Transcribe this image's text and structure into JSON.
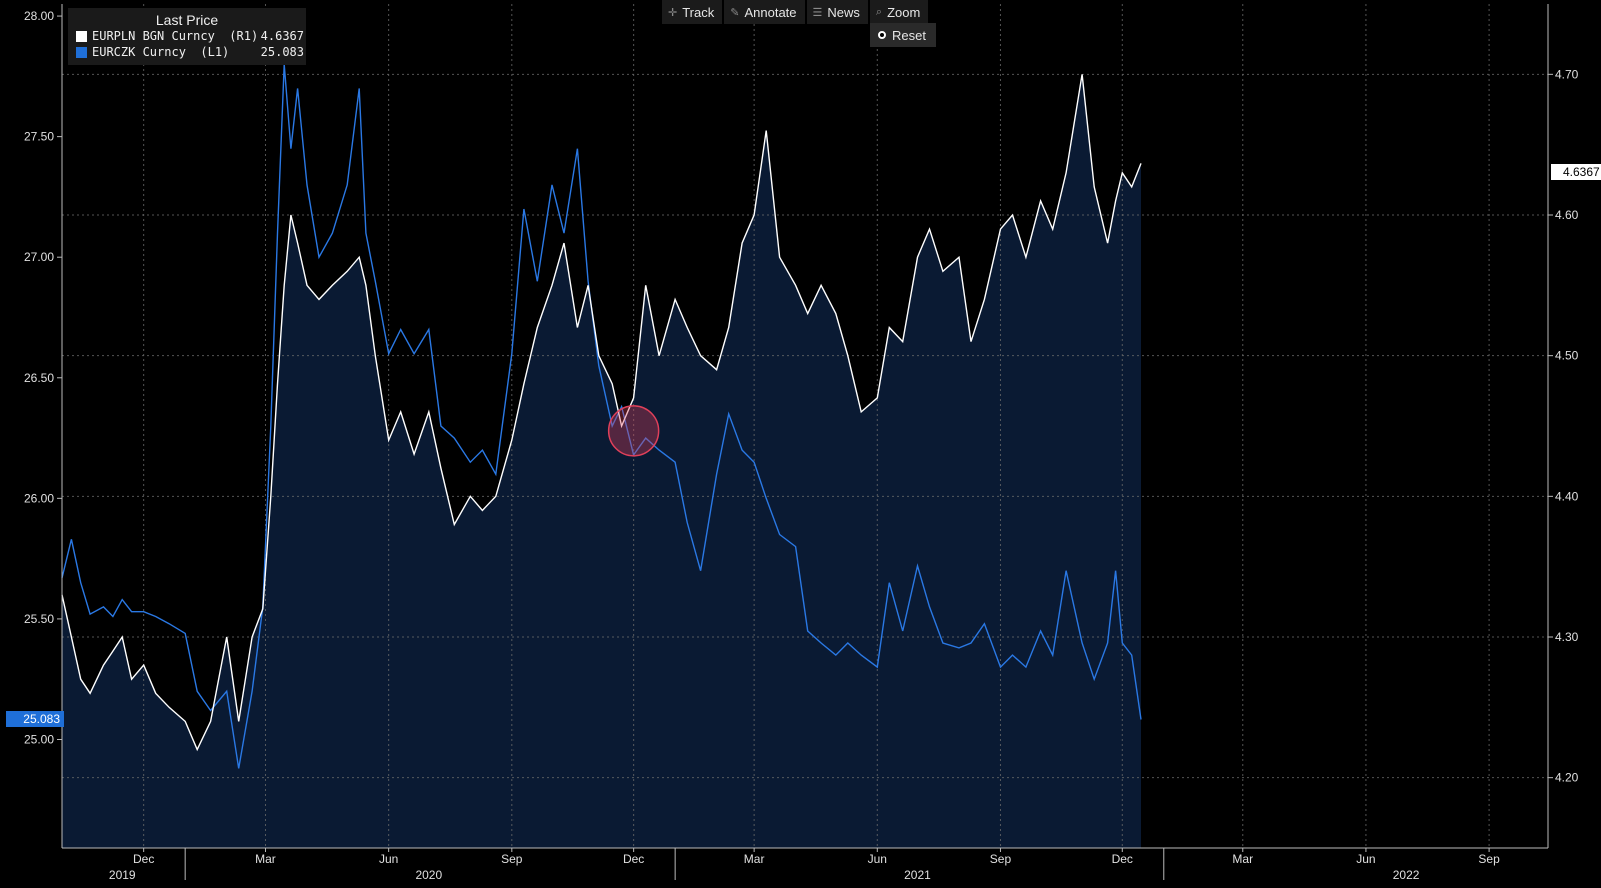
{
  "toolbar": {
    "buttons": [
      {
        "label": "Track",
        "icon": "crosshair-icon"
      },
      {
        "label": "Annotate",
        "icon": "pencil-icon"
      },
      {
        "label": "News",
        "icon": "news-icon"
      },
      {
        "label": "Zoom",
        "icon": "magnifier-icon"
      }
    ],
    "reset_label": "Reset"
  },
  "legend": {
    "title": "Last Price",
    "entries": [
      {
        "name": "EURPLN BGN Curncy  (R1)",
        "value": "4.6367",
        "color": "#ffffff"
      },
      {
        "name": "EURCZK Curncy  (L1)",
        "value": "25.083",
        "color": "#1f6fd8"
      }
    ]
  },
  "tags": {
    "left_value": "25.083",
    "right_value": "4.6367"
  },
  "colors": {
    "background": "#000000",
    "area_fill": "#0a1a33",
    "czk_line": "#2a78e4",
    "pln_line": "#ffffff",
    "highlight": "#e0405a",
    "grid": "#6a6a6a",
    "axis_text": "#e0e0e0"
  },
  "chart_data": {
    "type": "line",
    "xlim": [
      "2019-10-01",
      "2022-10-15"
    ],
    "ylim_left": [
      24.55,
      28.05
    ],
    "ylim_right": [
      4.15,
      4.75
    ],
    "left_ticks": [
      "25.00",
      "25.50",
      "26.00",
      "26.50",
      "27.00",
      "27.50",
      "28.00"
    ],
    "right_ticks": [
      "4.20",
      "4.30",
      "4.40",
      "4.50",
      "4.60",
      "4.70"
    ],
    "month_ticks": [
      {
        "label": "Dec",
        "date": "2019-12-01"
      },
      {
        "label": "Mar",
        "date": "2020-03-01"
      },
      {
        "label": "Jun",
        "date": "2020-06-01"
      },
      {
        "label": "Sep",
        "date": "2020-09-01"
      },
      {
        "label": "Dec",
        "date": "2020-12-01"
      },
      {
        "label": "Mar",
        "date": "2021-03-01"
      },
      {
        "label": "Jun",
        "date": "2021-06-01"
      },
      {
        "label": "Sep",
        "date": "2021-09-01"
      },
      {
        "label": "Dec",
        "date": "2021-12-01"
      },
      {
        "label": "Mar",
        "date": "2022-03-01"
      },
      {
        "label": "Jun",
        "date": "2022-06-01"
      },
      {
        "label": "Sep",
        "date": "2022-09-01"
      }
    ],
    "year_ticks": [
      {
        "label": "2019",
        "date": "2019-11-15"
      },
      {
        "label": "2020",
        "date": "2020-07-01"
      },
      {
        "label": "2021",
        "date": "2021-07-01"
      },
      {
        "label": "2022",
        "date": "2022-07-01"
      }
    ],
    "year_separators": [
      "2020-01-01",
      "2021-01-01",
      "2022-01-01"
    ],
    "highlight_date": "2020-12-01",
    "series": [
      {
        "name": "EURCZK Curncy  (L1)",
        "axis": "left",
        "values": [
          [
            "2019-10-01",
            25.67
          ],
          [
            "2019-10-08",
            25.83
          ],
          [
            "2019-10-15",
            25.65
          ],
          [
            "2019-10-22",
            25.52
          ],
          [
            "2019-11-01",
            25.55
          ],
          [
            "2019-11-08",
            25.51
          ],
          [
            "2019-11-15",
            25.58
          ],
          [
            "2019-11-22",
            25.53
          ],
          [
            "2019-12-01",
            25.53
          ],
          [
            "2019-12-10",
            25.51
          ],
          [
            "2019-12-20",
            25.48
          ],
          [
            "2020-01-01",
            25.44
          ],
          [
            "2020-01-10",
            25.2
          ],
          [
            "2020-01-20",
            25.12
          ],
          [
            "2020-02-01",
            25.2
          ],
          [
            "2020-02-10",
            24.88
          ],
          [
            "2020-02-20",
            25.2
          ],
          [
            "2020-02-28",
            25.55
          ],
          [
            "2020-03-05",
            26.3
          ],
          [
            "2020-03-10",
            27.1
          ],
          [
            "2020-03-15",
            27.8
          ],
          [
            "2020-03-20",
            27.45
          ],
          [
            "2020-03-25",
            27.7
          ],
          [
            "2020-04-01",
            27.3
          ],
          [
            "2020-04-10",
            27.0
          ],
          [
            "2020-04-20",
            27.1
          ],
          [
            "2020-05-01",
            27.3
          ],
          [
            "2020-05-10",
            27.7
          ],
          [
            "2020-05-15",
            27.1
          ],
          [
            "2020-05-22",
            26.9
          ],
          [
            "2020-06-01",
            26.6
          ],
          [
            "2020-06-10",
            26.7
          ],
          [
            "2020-06-20",
            26.6
          ],
          [
            "2020-07-01",
            26.7
          ],
          [
            "2020-07-10",
            26.3
          ],
          [
            "2020-07-20",
            26.25
          ],
          [
            "2020-08-01",
            26.15
          ],
          [
            "2020-08-10",
            26.2
          ],
          [
            "2020-08-20",
            26.1
          ],
          [
            "2020-09-01",
            26.6
          ],
          [
            "2020-09-10",
            27.2
          ],
          [
            "2020-09-20",
            26.9
          ],
          [
            "2020-10-01",
            27.3
          ],
          [
            "2020-10-10",
            27.1
          ],
          [
            "2020-10-20",
            27.45
          ],
          [
            "2020-10-28",
            26.9
          ],
          [
            "2020-11-05",
            26.55
          ],
          [
            "2020-11-15",
            26.3
          ],
          [
            "2020-11-22",
            26.38
          ],
          [
            "2020-12-01",
            26.18
          ],
          [
            "2020-12-10",
            26.25
          ],
          [
            "2020-12-20",
            26.2
          ],
          [
            "2021-01-01",
            26.15
          ],
          [
            "2021-01-10",
            25.9
          ],
          [
            "2021-01-20",
            25.7
          ],
          [
            "2021-02-01",
            26.1
          ],
          [
            "2021-02-10",
            26.35
          ],
          [
            "2021-02-20",
            26.2
          ],
          [
            "2021-03-01",
            26.15
          ],
          [
            "2021-03-10",
            26.0
          ],
          [
            "2021-03-20",
            25.85
          ],
          [
            "2021-04-01",
            25.8
          ],
          [
            "2021-04-10",
            25.45
          ],
          [
            "2021-04-20",
            25.4
          ],
          [
            "2021-05-01",
            25.35
          ],
          [
            "2021-05-10",
            25.4
          ],
          [
            "2021-05-20",
            25.35
          ],
          [
            "2021-06-01",
            25.3
          ],
          [
            "2021-06-10",
            25.65
          ],
          [
            "2021-06-20",
            25.45
          ],
          [
            "2021-07-01",
            25.72
          ],
          [
            "2021-07-10",
            25.55
          ],
          [
            "2021-07-20",
            25.4
          ],
          [
            "2021-08-01",
            25.38
          ],
          [
            "2021-08-10",
            25.4
          ],
          [
            "2021-08-20",
            25.48
          ],
          [
            "2021-09-01",
            25.3
          ],
          [
            "2021-09-10",
            25.35
          ],
          [
            "2021-09-20",
            25.3
          ],
          [
            "2021-10-01",
            25.45
          ],
          [
            "2021-10-10",
            25.35
          ],
          [
            "2021-10-20",
            25.7
          ],
          [
            "2021-11-01",
            25.4
          ],
          [
            "2021-11-10",
            25.25
          ],
          [
            "2021-11-20",
            25.4
          ],
          [
            "2021-11-26",
            25.7
          ],
          [
            "2021-12-01",
            25.4
          ],
          [
            "2021-12-08",
            25.35
          ],
          [
            "2021-12-15",
            25.083
          ]
        ]
      },
      {
        "name": "EURPLN BGN Curncy  (R1)",
        "axis": "right",
        "values": [
          [
            "2019-10-01",
            4.33
          ],
          [
            "2019-10-08",
            4.3
          ],
          [
            "2019-10-15",
            4.27
          ],
          [
            "2019-10-22",
            4.26
          ],
          [
            "2019-11-01",
            4.28
          ],
          [
            "2019-11-08",
            4.29
          ],
          [
            "2019-11-15",
            4.3
          ],
          [
            "2019-11-22",
            4.27
          ],
          [
            "2019-12-01",
            4.28
          ],
          [
            "2019-12-10",
            4.26
          ],
          [
            "2019-12-20",
            4.25
          ],
          [
            "2020-01-01",
            4.24
          ],
          [
            "2020-01-10",
            4.22
          ],
          [
            "2020-01-20",
            4.24
          ],
          [
            "2020-02-01",
            4.3
          ],
          [
            "2020-02-10",
            4.24
          ],
          [
            "2020-02-20",
            4.3
          ],
          [
            "2020-02-28",
            4.32
          ],
          [
            "2020-03-05",
            4.4
          ],
          [
            "2020-03-10",
            4.48
          ],
          [
            "2020-03-15",
            4.55
          ],
          [
            "2020-03-20",
            4.6
          ],
          [
            "2020-03-25",
            4.58
          ],
          [
            "2020-04-01",
            4.55
          ],
          [
            "2020-04-10",
            4.54
          ],
          [
            "2020-04-20",
            4.55
          ],
          [
            "2020-05-01",
            4.56
          ],
          [
            "2020-05-10",
            4.57
          ],
          [
            "2020-05-15",
            4.55
          ],
          [
            "2020-05-22",
            4.5
          ],
          [
            "2020-06-01",
            4.44
          ],
          [
            "2020-06-10",
            4.46
          ],
          [
            "2020-06-20",
            4.43
          ],
          [
            "2020-07-01",
            4.46
          ],
          [
            "2020-07-10",
            4.42
          ],
          [
            "2020-07-20",
            4.38
          ],
          [
            "2020-08-01",
            4.4
          ],
          [
            "2020-08-10",
            4.39
          ],
          [
            "2020-08-20",
            4.4
          ],
          [
            "2020-09-01",
            4.44
          ],
          [
            "2020-09-10",
            4.48
          ],
          [
            "2020-09-20",
            4.52
          ],
          [
            "2020-10-01",
            4.55
          ],
          [
            "2020-10-10",
            4.58
          ],
          [
            "2020-10-20",
            4.52
          ],
          [
            "2020-10-28",
            4.55
          ],
          [
            "2020-11-05",
            4.5
          ],
          [
            "2020-11-15",
            4.48
          ],
          [
            "2020-11-22",
            4.45
          ],
          [
            "2020-12-01",
            4.47
          ],
          [
            "2020-12-10",
            4.55
          ],
          [
            "2020-12-20",
            4.5
          ],
          [
            "2021-01-01",
            4.54
          ],
          [
            "2021-01-10",
            4.52
          ],
          [
            "2021-01-20",
            4.5
          ],
          [
            "2021-02-01",
            4.49
          ],
          [
            "2021-02-10",
            4.52
          ],
          [
            "2021-02-20",
            4.58
          ],
          [
            "2021-03-01",
            4.6
          ],
          [
            "2021-03-10",
            4.66
          ],
          [
            "2021-03-20",
            4.57
          ],
          [
            "2021-04-01",
            4.55
          ],
          [
            "2021-04-10",
            4.53
          ],
          [
            "2021-04-20",
            4.55
          ],
          [
            "2021-05-01",
            4.53
          ],
          [
            "2021-05-10",
            4.5
          ],
          [
            "2021-05-20",
            4.46
          ],
          [
            "2021-06-01",
            4.47
          ],
          [
            "2021-06-10",
            4.52
          ],
          [
            "2021-06-20",
            4.51
          ],
          [
            "2021-07-01",
            4.57
          ],
          [
            "2021-07-10",
            4.59
          ],
          [
            "2021-07-20",
            4.56
          ],
          [
            "2021-08-01",
            4.57
          ],
          [
            "2021-08-10",
            4.51
          ],
          [
            "2021-08-20",
            4.54
          ],
          [
            "2021-09-01",
            4.59
          ],
          [
            "2021-09-10",
            4.6
          ],
          [
            "2021-09-20",
            4.57
          ],
          [
            "2021-10-01",
            4.61
          ],
          [
            "2021-10-10",
            4.59
          ],
          [
            "2021-10-20",
            4.63
          ],
          [
            "2021-11-01",
            4.7
          ],
          [
            "2021-11-10",
            4.62
          ],
          [
            "2021-11-20",
            4.58
          ],
          [
            "2021-11-26",
            4.61
          ],
          [
            "2021-12-01",
            4.63
          ],
          [
            "2021-12-08",
            4.62
          ],
          [
            "2021-12-15",
            4.6367
          ]
        ]
      }
    ]
  }
}
